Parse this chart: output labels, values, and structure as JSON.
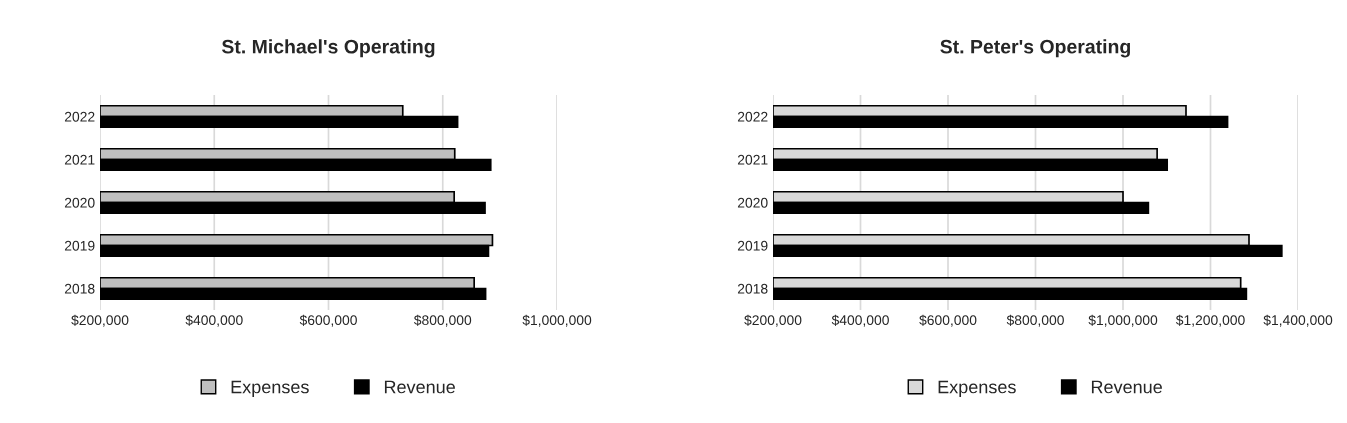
{
  "chart_data": [
    {
      "type": "bar",
      "orientation": "horizontal",
      "title": "St. Michael's Operating",
      "categories": [
        "2022",
        "2021",
        "2020",
        "2019",
        "2018"
      ],
      "series": [
        {
          "name": "Expenses",
          "color": "#bfbfbf",
          "values": [
            730000,
            821000,
            820000,
            887000,
            855000
          ]
        },
        {
          "name": "Revenue",
          "color": "#000000",
          "values": [
            826000,
            884000,
            874000,
            880000,
            875000
          ]
        }
      ],
      "xlim": [
        200000,
        1000000
      ],
      "xticks": [
        {
          "value": 200000,
          "label": "$200,000"
        },
        {
          "value": 400000,
          "label": "$400,000"
        },
        {
          "value": 600000,
          "label": "$600,000"
        },
        {
          "value": 800000,
          "label": "$800,000"
        },
        {
          "value": 1000000,
          "label": "$1,000,000"
        }
      ],
      "grid": "x",
      "legend": "bottom"
    },
    {
      "type": "bar",
      "orientation": "horizontal",
      "title": "St. Peter's Operating",
      "categories": [
        "2022",
        "2021",
        "2020",
        "2019",
        "2018"
      ],
      "series": [
        {
          "name": "Expenses",
          "color": "#d9d9d9",
          "values": [
            1144000,
            1078000,
            1000000,
            1288000,
            1269000
          ]
        },
        {
          "name": "Revenue",
          "color": "#000000",
          "values": [
            1239000,
            1101000,
            1058000,
            1363000,
            1282000
          ]
        }
      ],
      "xlim": [
        200000,
        1400000
      ],
      "xticks": [
        {
          "value": 200000,
          "label": "$200,000"
        },
        {
          "value": 400000,
          "label": "$400,000"
        },
        {
          "value": 600000,
          "label": "$600,000"
        },
        {
          "value": 800000,
          "label": "$800,000"
        },
        {
          "value": 1000000,
          "label": "$1,000,000"
        },
        {
          "value": 1200000,
          "label": "$1,200,000"
        },
        {
          "value": 1400000,
          "label": "$1,400,000"
        }
      ],
      "grid": "x",
      "legend": "bottom"
    }
  ]
}
